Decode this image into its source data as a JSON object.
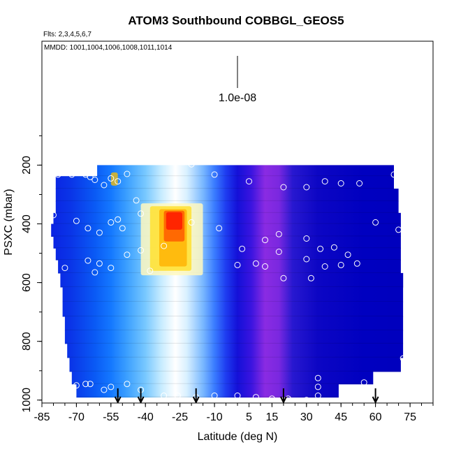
{
  "chart_data": {
    "type": "heatmap",
    "title": "ATOM3 Southbound COBBGL_GEOS5",
    "subtitle_flights": "Flts: 2,3,4,5,6,7",
    "subtitle_dates": "MMDD: 1001,1004,1006,1008,1011,1014",
    "xlabel": "Latitude (deg N)",
    "ylabel": "PSXC (mbar)",
    "xlim": [
      -85,
      85
    ],
    "ylim": [
      1000,
      0
    ],
    "x_ticks": [
      "-85",
      "-70",
      "-55",
      "-40",
      "-25",
      "-10",
      "5",
      "15",
      "30",
      "45",
      "60",
      "75"
    ],
    "y_ticks": [
      "200",
      "400",
      "600",
      "800",
      "1000"
    ],
    "y_tick_values": [
      200,
      400,
      600,
      800,
      1000
    ],
    "scale_label": "1.0e-08",
    "colormap": [
      "#0000c8",
      "#0a64ff",
      "#64c8ff",
      "#ffffff",
      "#ffe000",
      "#ff1e00"
    ],
    "background_color": "#8a2be2",
    "pressure_levels": [
      215,
      260,
      300,
      345,
      380,
      420,
      465,
      500,
      545,
      590,
      640,
      690,
      740,
      785,
      830,
      880,
      925,
      965
    ],
    "latitude_extent_per_level": [
      [
        -61,
        68
      ],
      [
        -79,
        68
      ],
      [
        -79,
        70
      ],
      [
        -79,
        70
      ],
      [
        -80,
        71
      ],
      [
        -81,
        71
      ],
      [
        -80,
        71
      ],
      [
        -79,
        71
      ],
      [
        -78,
        71
      ],
      [
        -77,
        72
      ],
      [
        -76,
        72
      ],
      [
        -76,
        72
      ],
      [
        -75,
        72
      ],
      [
        -75,
        72
      ],
      [
        -74,
        72
      ],
      [
        -73,
        71
      ],
      [
        -72,
        59
      ],
      [
        -70,
        44
      ]
    ],
    "hotspot": {
      "lat_center": -25,
      "pressure_range": [
        330,
        570
      ],
      "peak_pressure": 390
    },
    "observation_points": [
      {
        "lat": -78,
        "p": 232
      },
      {
        "lat": -72,
        "p": 232
      },
      {
        "lat": -66,
        "p": 232
      },
      {
        "lat": -64,
        "p": 240
      },
      {
        "lat": -62,
        "p": 250
      },
      {
        "lat": -58,
        "p": 268
      },
      {
        "lat": -55,
        "p": 245
      },
      {
        "lat": -52,
        "p": 255
      },
      {
        "lat": -48,
        "p": 230
      },
      {
        "lat": -44,
        "p": 320
      },
      {
        "lat": -20,
        "p": 197
      },
      {
        "lat": -10,
        "p": 232
      },
      {
        "lat": 5,
        "p": 255
      },
      {
        "lat": 20,
        "p": 275
      },
      {
        "lat": 30,
        "p": 275
      },
      {
        "lat": 38,
        "p": 255
      },
      {
        "lat": 45,
        "p": 262
      },
      {
        "lat": 53,
        "p": 262
      },
      {
        "lat": 68,
        "p": 232
      },
      {
        "lat": 70,
        "p": 232
      },
      {
        "lat": -80,
        "p": 370
      },
      {
        "lat": -70,
        "p": 390
      },
      {
        "lat": -65,
        "p": 415
      },
      {
        "lat": -60,
        "p": 430
      },
      {
        "lat": -55,
        "p": 395
      },
      {
        "lat": -52,
        "p": 385
      },
      {
        "lat": -50,
        "p": 415
      },
      {
        "lat": -42,
        "p": 365
      },
      {
        "lat": -20,
        "p": 395
      },
      {
        "lat": -8,
        "p": 415
      },
      {
        "lat": 2,
        "p": 485
      },
      {
        "lat": 12,
        "p": 455
      },
      {
        "lat": 18,
        "p": 435
      },
      {
        "lat": 30,
        "p": 450
      },
      {
        "lat": 36,
        "p": 485
      },
      {
        "lat": 42,
        "p": 480
      },
      {
        "lat": 48,
        "p": 505
      },
      {
        "lat": 60,
        "p": 395
      },
      {
        "lat": 70,
        "p": 420
      },
      {
        "lat": -65,
        "p": 525
      },
      {
        "lat": -60,
        "p": 535
      },
      {
        "lat": -55,
        "p": 550
      },
      {
        "lat": -48,
        "p": 505
      },
      {
        "lat": -42,
        "p": 490
      },
      {
        "lat": -38,
        "p": 560
      },
      {
        "lat": -32,
        "p": 475
      },
      {
        "lat": 0,
        "p": 540
      },
      {
        "lat": 8,
        "p": 535
      },
      {
        "lat": 12,
        "p": 545
      },
      {
        "lat": 18,
        "p": 495
      },
      {
        "lat": 30,
        "p": 520
      },
      {
        "lat": 38,
        "p": 545
      },
      {
        "lat": 45,
        "p": 540
      },
      {
        "lat": 52,
        "p": 535
      },
      {
        "lat": 20,
        "p": 585
      },
      {
        "lat": 32,
        "p": 585
      },
      {
        "lat": -75,
        "p": 550
      },
      {
        "lat": -62,
        "p": 565
      },
      {
        "lat": -78,
        "p": 868
      },
      {
        "lat": 72,
        "p": 858
      },
      {
        "lat": -70,
        "p": 950
      },
      {
        "lat": -66,
        "p": 945
      },
      {
        "lat": -64,
        "p": 945
      },
      {
        "lat": -58,
        "p": 965
      },
      {
        "lat": -55,
        "p": 955
      },
      {
        "lat": -48,
        "p": 945
      },
      {
        "lat": -42,
        "p": 965
      },
      {
        "lat": -32,
        "p": 985
      },
      {
        "lat": -26,
        "p": 985
      },
      {
        "lat": -18,
        "p": 990
      },
      {
        "lat": -10,
        "p": 985
      },
      {
        "lat": 0,
        "p": 985
      },
      {
        "lat": 8,
        "p": 990
      },
      {
        "lat": 15,
        "p": 995
      },
      {
        "lat": 22,
        "p": 995
      },
      {
        "lat": 30,
        "p": 1000
      },
      {
        "lat": 35,
        "p": 925
      },
      {
        "lat": 35,
        "p": 955
      },
      {
        "lat": 35,
        "p": 985
      },
      {
        "lat": 40,
        "p": 1005
      },
      {
        "lat": 47,
        "p": 1005
      },
      {
        "lat": 55,
        "p": 940
      }
    ],
    "flight_markers_lat": [
      -52,
      -42,
      -18,
      20,
      60
    ]
  }
}
